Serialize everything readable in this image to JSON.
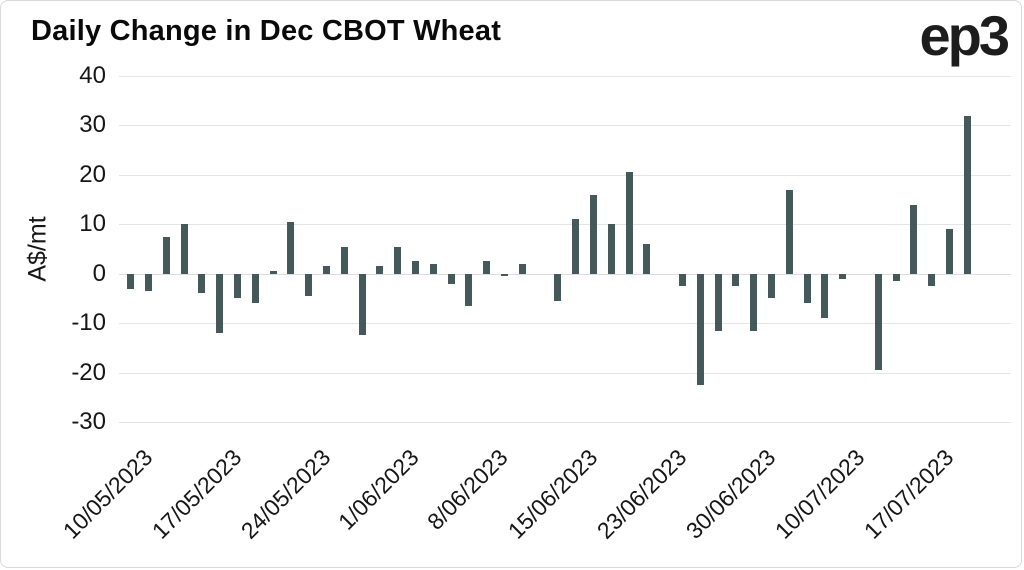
{
  "branding": {
    "logo_text": "ep3"
  },
  "chart_data": {
    "type": "bar",
    "title": "Daily Change in Dec CBOT Wheat",
    "xlabel": "",
    "ylabel": "A$/mt",
    "ylim": [
      -30,
      40
    ],
    "yticks": [
      40,
      30,
      20,
      10,
      0,
      -10,
      -20,
      -30
    ],
    "grid": "horizontal",
    "legend": "none",
    "bar_color": "#45585a",
    "n_bars": 48,
    "values": [
      -3,
      -3.5,
      7.5,
      10,
      -4,
      -12,
      -5,
      -6,
      0.5,
      10.5,
      -4.5,
      1.5,
      5.5,
      -12.5,
      1.5,
      5.5,
      2.5,
      2,
      -2,
      -6.5,
      2.5,
      -0.5,
      2,
      0,
      -5.5,
      11,
      16,
      10,
      20.5,
      6,
      0,
      -2.5,
      -22.5,
      -11.5,
      -2.5,
      -11.5,
      -5,
      17,
      -6,
      -9,
      -1,
      0,
      -19.5,
      -1.5,
      14,
      -2.5,
      9,
      32
    ],
    "xticks": [
      {
        "slot": 0,
        "label": "10/05/2023"
      },
      {
        "slot": 5,
        "label": "17/05/2023"
      },
      {
        "slot": 10,
        "label": "24/05/2023"
      },
      {
        "slot": 15,
        "label": "1/06/2023"
      },
      {
        "slot": 20,
        "label": "8/06/2023"
      },
      {
        "slot": 25,
        "label": "15/06/2023"
      },
      {
        "slot": 30,
        "label": "23/06/2023"
      },
      {
        "slot": 35,
        "label": "30/06/2023"
      },
      {
        "slot": 40,
        "label": "10/07/2023"
      },
      {
        "slot": 45,
        "label": "17/07/2023"
      }
    ]
  }
}
